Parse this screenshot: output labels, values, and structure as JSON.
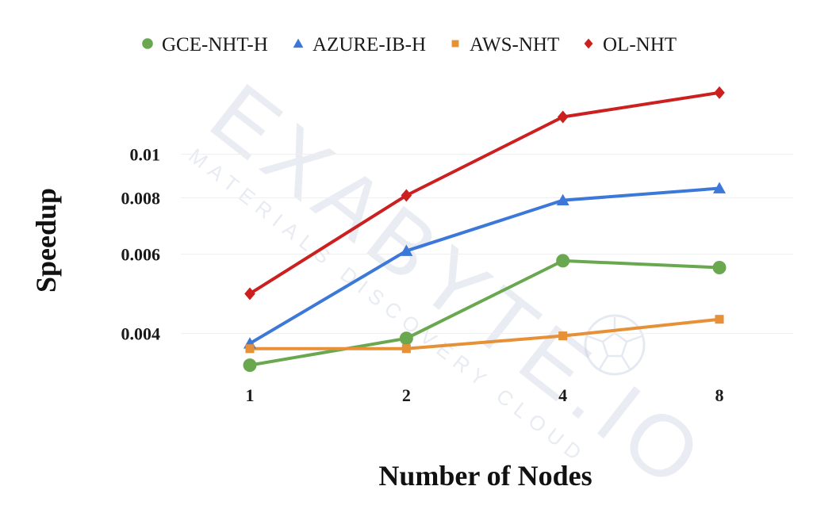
{
  "watermark": {
    "main": "EXABYTE.IO",
    "sub": "MATERIALS DISCOVERY CLOUD",
    "icon": "soccer-ball-icon"
  },
  "chart_data": {
    "type": "line",
    "title": "",
    "xlabel": "Number of Nodes",
    "ylabel": "Speedup",
    "y_scale": "log",
    "ylim": [
      0.0033,
      0.0142
    ],
    "categories": [
      "1",
      "2",
      "4",
      "8"
    ],
    "y_ticks": [
      {
        "value": 0.004,
        "label": "0.004"
      },
      {
        "value": 0.006,
        "label": "0.006"
      },
      {
        "value": 0.008,
        "label": "0.008"
      },
      {
        "value": 0.01,
        "label": "0.01"
      }
    ],
    "grid": true,
    "legend_position": "top",
    "series": [
      {
        "name": "GCE-NHT-H",
        "color": "#6aa84f",
        "marker": "circle",
        "values": [
          0.0034,
          0.0039,
          0.0058,
          0.0056
        ]
      },
      {
        "name": "AZURE-IB-H",
        "color": "#3c78d8",
        "marker": "triangle",
        "values": [
          0.0038,
          0.0061,
          0.0079,
          0.0084
        ]
      },
      {
        "name": "AWS-NHT",
        "color": "#e69138",
        "marker": "square",
        "values": [
          0.0037,
          0.0037,
          0.00395,
          0.0043
        ]
      },
      {
        "name": "OL-NHT",
        "color": "#cc1f1f",
        "marker": "diamond",
        "values": [
          0.0049,
          0.0081,
          0.0121,
          0.0137
        ]
      }
    ]
  }
}
